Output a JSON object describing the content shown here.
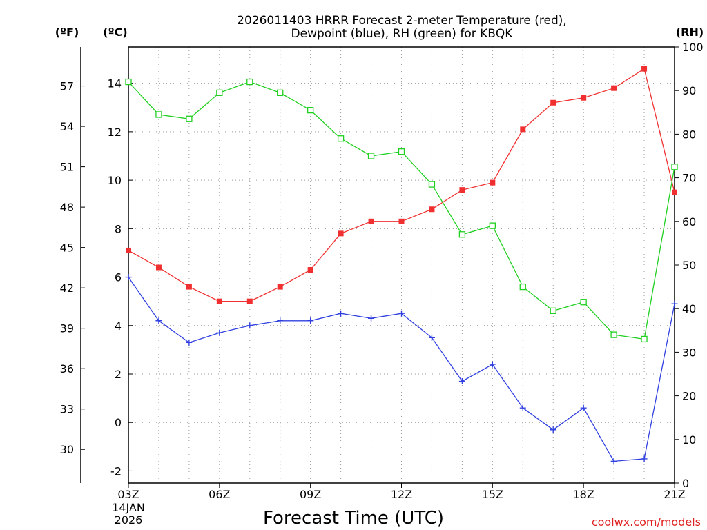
{
  "chart_data": {
    "type": "line",
    "title_line1": "2026011403 HRRR Forecast 2-meter Temperature (red),",
    "title_line2": "Dewpoint (blue), RH (green) for KBQK",
    "xlabel": "Forecast Time (UTC)",
    "date_line1": "14JAN",
    "date_line2": "2026",
    "credit": "coolwx.com/models",
    "unit_f": "(ºF)",
    "unit_c": "(ºC)",
    "unit_rh": "(RH)",
    "x_hours": [
      3,
      4,
      5,
      6,
      7,
      8,
      9,
      10,
      11,
      12,
      13,
      14,
      15,
      16,
      17,
      18,
      19,
      20,
      21
    ],
    "x_ticks": [
      {
        "hour": 3,
        "label": "03Z"
      },
      {
        "hour": 6,
        "label": "06Z"
      },
      {
        "hour": 9,
        "label": "09Z"
      },
      {
        "hour": 12,
        "label": "12Z"
      },
      {
        "hour": 15,
        "label": "15Z"
      },
      {
        "hour": 18,
        "label": "18Z"
      },
      {
        "hour": 21,
        "label": "21Z"
      }
    ],
    "xlim": [
      3,
      21
    ],
    "ylim_c": [
      -2.5,
      15.5
    ],
    "yticks_c": [
      -2,
      0,
      2,
      4,
      6,
      8,
      10,
      12,
      14
    ],
    "yticks_f": [
      30,
      33,
      36,
      39,
      42,
      45,
      48,
      51,
      54,
      57
    ],
    "ylim_rh": [
      0,
      100
    ],
    "yticks_rh": [
      0,
      10,
      20,
      30,
      40,
      50,
      60,
      70,
      80,
      90,
      100
    ],
    "series": [
      {
        "name": "Temperature (°C)",
        "color": "#f03030",
        "marker": "square-filled",
        "axis": "c",
        "values": [
          7.1,
          6.4,
          5.6,
          5.0,
          5.0,
          5.6,
          6.3,
          7.8,
          8.3,
          8.3,
          8.8,
          9.6,
          9.9,
          12.1,
          13.2,
          13.4,
          13.8,
          14.6,
          9.5
        ]
      },
      {
        "name": "Dewpoint (°C)",
        "color": "#3040e0",
        "marker": "plus",
        "axis": "c",
        "values": [
          6.0,
          4.2,
          3.3,
          3.7,
          4.0,
          4.2,
          4.2,
          4.5,
          4.3,
          4.5,
          3.5,
          1.7,
          2.4,
          0.6,
          -0.3,
          0.6,
          -1.6,
          -1.5,
          4.9
        ]
      },
      {
        "name": "RH (%)",
        "color": "#20d020",
        "marker": "square-open",
        "axis": "rh",
        "values": [
          92,
          84.5,
          83.5,
          89.5,
          92,
          89.5,
          85.5,
          79,
          75,
          76,
          68.5,
          57,
          59,
          45,
          39.5,
          41.5,
          34,
          33,
          72.5
        ]
      }
    ]
  }
}
